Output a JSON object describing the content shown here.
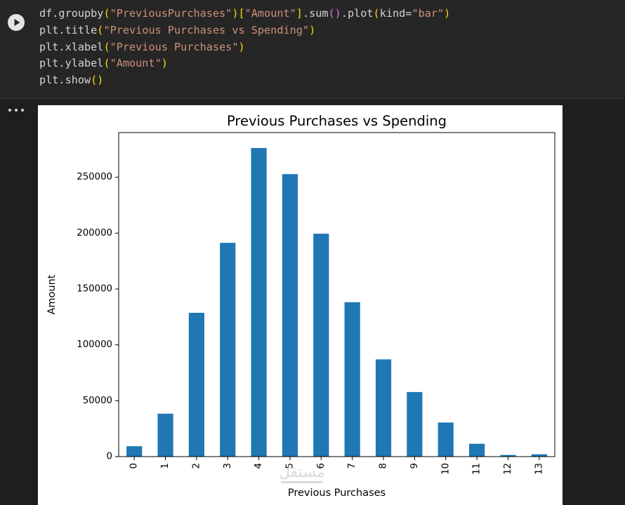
{
  "code_cell": {
    "lines": [
      [
        [
          "df.groupby",
          "id"
        ],
        [
          "(",
          "br1"
        ],
        [
          "\"PreviousPurchases\"",
          "str"
        ],
        [
          ")",
          "br1"
        ],
        [
          "[",
          "br1"
        ],
        [
          "\"Amount\"",
          "str"
        ],
        [
          "]",
          "br1"
        ],
        [
          ".sum",
          "id"
        ],
        [
          "()",
          "br2"
        ],
        [
          ".plot",
          "id"
        ],
        [
          "(",
          "br1"
        ],
        [
          "kind=",
          "id"
        ],
        [
          "\"bar\"",
          "str"
        ],
        [
          ")",
          "br1"
        ]
      ],
      [
        [
          "plt.title",
          "id"
        ],
        [
          "(",
          "br1"
        ],
        [
          "\"Previous Purchases vs Spending\"",
          "str"
        ],
        [
          ")",
          "br1"
        ]
      ],
      [
        [
          "plt.xlabel",
          "id"
        ],
        [
          "(",
          "br1"
        ],
        [
          "\"Previous Purchases\"",
          "str"
        ],
        [
          ")",
          "br1"
        ]
      ],
      [
        [
          "plt.ylabel",
          "id"
        ],
        [
          "(",
          "br1"
        ],
        [
          "\"Amount\"",
          "str"
        ],
        [
          ")",
          "br1"
        ]
      ],
      [
        [
          "plt.show",
          "id"
        ],
        [
          "()",
          "br1"
        ]
      ]
    ],
    "run_icon": "play-icon",
    "output_menu_icon": "more-horiz-icon"
  },
  "chart_data": {
    "type": "bar",
    "title": "Previous Purchases vs Spending",
    "xlabel": "Previous Purchases",
    "ylabel": "Amount",
    "categories": [
      "0",
      "1",
      "2",
      "3",
      "4",
      "5",
      "6",
      "7",
      "8",
      "9",
      "10",
      "11",
      "12",
      "13"
    ],
    "values": [
      9300,
      38400,
      128700,
      191300,
      276200,
      252800,
      199500,
      138200,
      87000,
      57800,
      30500,
      11500,
      1500,
      2100
    ],
    "ylim": [
      0,
      290000
    ],
    "yticks": [
      0,
      50000,
      100000,
      150000,
      200000,
      250000
    ],
    "ytick_labels": [
      "0",
      "50000",
      "100000",
      "150000",
      "200000",
      "250000"
    ],
    "bar_color": "#1f77b4",
    "grid": false,
    "legend": false,
    "xtick_rotation": 90
  },
  "watermark_text": "مستقل"
}
